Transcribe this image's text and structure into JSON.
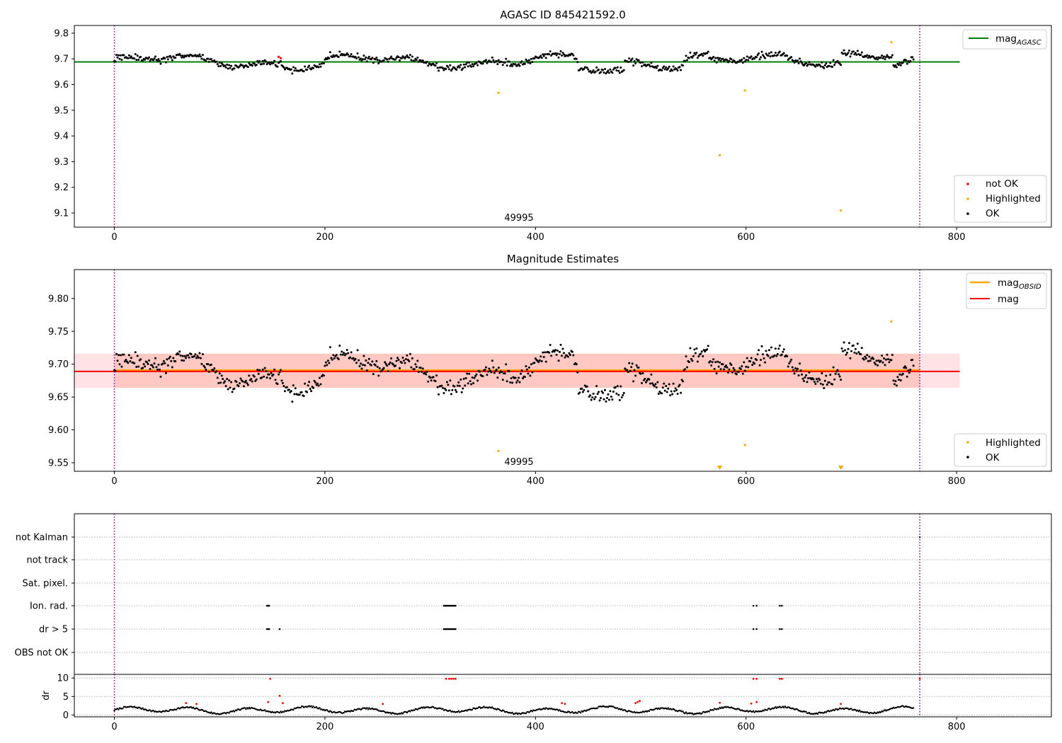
{
  "chart_data": [
    {
      "type": "scatter",
      "title": "AGASC ID 845421592.0",
      "xlabel": "",
      "ylabel": "",
      "xlim": [
        -38,
        890
      ],
      "ylim": [
        9.045,
        9.83
      ],
      "xticks": [
        0,
        200,
        400,
        600,
        800
      ],
      "yticks": [
        9.1,
        9.2,
        9.3,
        9.4,
        9.5,
        9.6,
        9.7,
        9.8
      ],
      "ytick_decimals": 1,
      "obs_boundaries": [
        0,
        765
      ],
      "annotation": {
        "text": "49995",
        "x": 383,
        "y": 9.065
      },
      "hlines": [
        {
          "name": "magAGASC",
          "legend_main": "mag",
          "legend_sub": "AGASC",
          "y": 9.688,
          "x_range": [
            -38,
            803
          ],
          "color": "#008000"
        }
      ],
      "series": [
        {
          "name": "not OK",
          "color": "#ff0000",
          "points": [
            [
              156,
              9.708
            ],
            [
              158,
              9.703
            ]
          ]
        },
        {
          "name": "Highlighted",
          "color": "#ffa500",
          "points": [
            [
              365,
              9.568
            ],
            [
              575,
              9.325
            ],
            [
              599,
              9.577
            ],
            [
              690,
              9.11
            ],
            [
              738,
              9.765
            ]
          ]
        },
        {
          "name": "OK",
          "color": "#000000",
          "n_points": 760,
          "baseline": "wavy light curve around 9.69 between x 0 and 765"
        }
      ],
      "legends": [
        {
          "position": "upper right",
          "entries": [
            "magAGASC"
          ]
        },
        {
          "position": "lower right",
          "entries": [
            "not OK",
            "Highlighted",
            "OK"
          ]
        }
      ]
    },
    {
      "type": "scatter",
      "title": "Magnitude Estimates",
      "xlabel": "",
      "ylabel": "",
      "xlim": [
        -38,
        890
      ],
      "ylim": [
        9.537,
        9.844
      ],
      "xticks": [
        0,
        200,
        400,
        600,
        800
      ],
      "yticks": [
        9.55,
        9.6,
        9.65,
        9.7,
        9.75,
        9.8
      ],
      "ytick_decimals": 2,
      "obs_boundaries": [
        0,
        765
      ],
      "annotation": {
        "text": "49995",
        "x": 383,
        "y": 9.548
      },
      "bands": [
        {
          "y_range": [
            9.664,
            9.716
          ],
          "x_range": [
            0,
            765
          ],
          "color": "#ffa07a",
          "opacity": 0.45
        },
        {
          "y_range": [
            9.664,
            9.716
          ],
          "x_range": [
            -38,
            803
          ],
          "color": "#ffb6c1",
          "opacity": 0.4
        }
      ],
      "hlines": [
        {
          "name": "magOBSID",
          "legend_main": "mag",
          "legend_sub": "OBSID",
          "y": 9.691,
          "x_range": [
            0,
            765
          ],
          "color": "#ffa500"
        },
        {
          "name": "mag",
          "legend_main": "mag",
          "legend_sub": "",
          "y": 9.689,
          "x_range": [
            -38,
            803
          ],
          "color": "#ff0000"
        }
      ],
      "series": [
        {
          "name": "Highlighted",
          "color": "#ffa500",
          "points": [
            [
              365,
              9.568
            ],
            [
              599,
              9.577
            ],
            [
              738,
              9.765
            ]
          ],
          "clipped_low_x": [
            575,
            690
          ]
        },
        {
          "name": "OK",
          "color": "#000000",
          "n_points": 760,
          "baseline": "same light curve as top panel, zoomed"
        }
      ],
      "legends": [
        {
          "position": "upper right",
          "entries": [
            "magOBSID",
            "mag"
          ]
        },
        {
          "position": "lower right",
          "entries": [
            "Highlighted",
            "OK"
          ]
        }
      ]
    },
    {
      "type": "scatter",
      "title": "",
      "xlabel": "",
      "ylabel": "",
      "xlim": [
        -38,
        890
      ],
      "xticks": [
        0,
        200,
        400,
        600,
        800
      ],
      "obs_boundaries": [
        0,
        765
      ],
      "flag_rows": [
        "not Kalman",
        "not track",
        "Sat. pixel.",
        "Ion. rad.",
        "dr > 5",
        "OBS not OK"
      ],
      "flag_points": {
        "Ion. rad.": [
          145,
          146,
          147,
          313,
          314,
          315,
          316,
          317,
          318,
          319,
          320,
          321,
          322,
          323,
          324,
          607,
          610,
          632,
          634
        ],
        "dr > 5": [
          145,
          146,
          147,
          157,
          313,
          314,
          315,
          316,
          317,
          318,
          319,
          320,
          321,
          322,
          323,
          324,
          607,
          610,
          632,
          634
        ],
        "not Kalman": [
          765
        ]
      }
    },
    {
      "type": "scatter",
      "title": "",
      "xlabel": "",
      "ylabel": "dr",
      "xlim": [
        -38,
        890
      ],
      "ylim": [
        -0.5,
        11
      ],
      "xticks": [
        0,
        200,
        400,
        600,
        800
      ],
      "yticks": [
        0,
        5,
        10
      ],
      "obs_boundaries": [
        0,
        765
      ],
      "red_points": [
        [
          68,
          3.2
        ],
        [
          78,
          3.0
        ],
        [
          146,
          3.5
        ],
        [
          148,
          9.8
        ],
        [
          157,
          5.2
        ],
        [
          160,
          3.2
        ],
        [
          255,
          3.0
        ],
        [
          315,
          9.8
        ],
        [
          318,
          9.8
        ],
        [
          320,
          9.8
        ],
        [
          322,
          9.8
        ],
        [
          324,
          9.8
        ],
        [
          425,
          3.2
        ],
        [
          428,
          3.0
        ],
        [
          495,
          3.2
        ],
        [
          497,
          3.5
        ],
        [
          499,
          3.8
        ],
        [
          575,
          3.3
        ],
        [
          605,
          3.1
        ],
        [
          607,
          9.8
        ],
        [
          610,
          9.8
        ],
        [
          610,
          3.5
        ],
        [
          632,
          9.8
        ],
        [
          634,
          9.8
        ],
        [
          690,
          3.0
        ],
        [
          765,
          9.8
        ]
      ],
      "black_points": {
        "n_points": 760,
        "baseline": "dr around 1-2.5 with slow oscillation"
      }
    }
  ]
}
